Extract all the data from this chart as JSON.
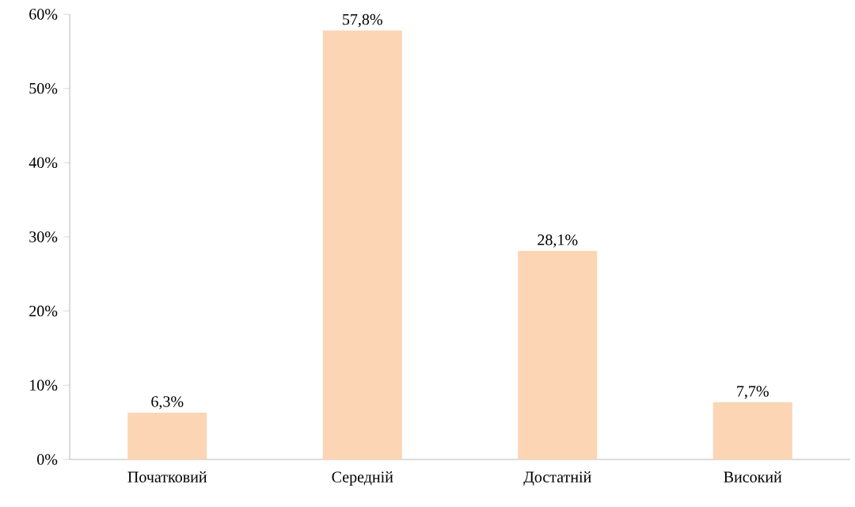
{
  "chart_data": {
    "type": "bar",
    "categories": [
      "Початковий",
      "Середній",
      "Достатній",
      "Високий"
    ],
    "values": [
      6.3,
      57.8,
      28.1,
      7.7
    ],
    "value_labels": [
      "6,3%",
      "57,8%",
      "28,1%",
      "7,7%"
    ],
    "color": "#fcd5b5",
    "ylim": [
      0,
      60
    ],
    "yticks": [
      {
        "value": 0,
        "label": "0%"
      },
      {
        "value": 10,
        "label": "10%"
      },
      {
        "value": 20,
        "label": "20%"
      },
      {
        "value": 30,
        "label": "30%"
      },
      {
        "value": 40,
        "label": "40%"
      },
      {
        "value": 50,
        "label": "50%"
      },
      {
        "value": 60,
        "label": "60%"
      }
    ],
    "grid": false
  }
}
